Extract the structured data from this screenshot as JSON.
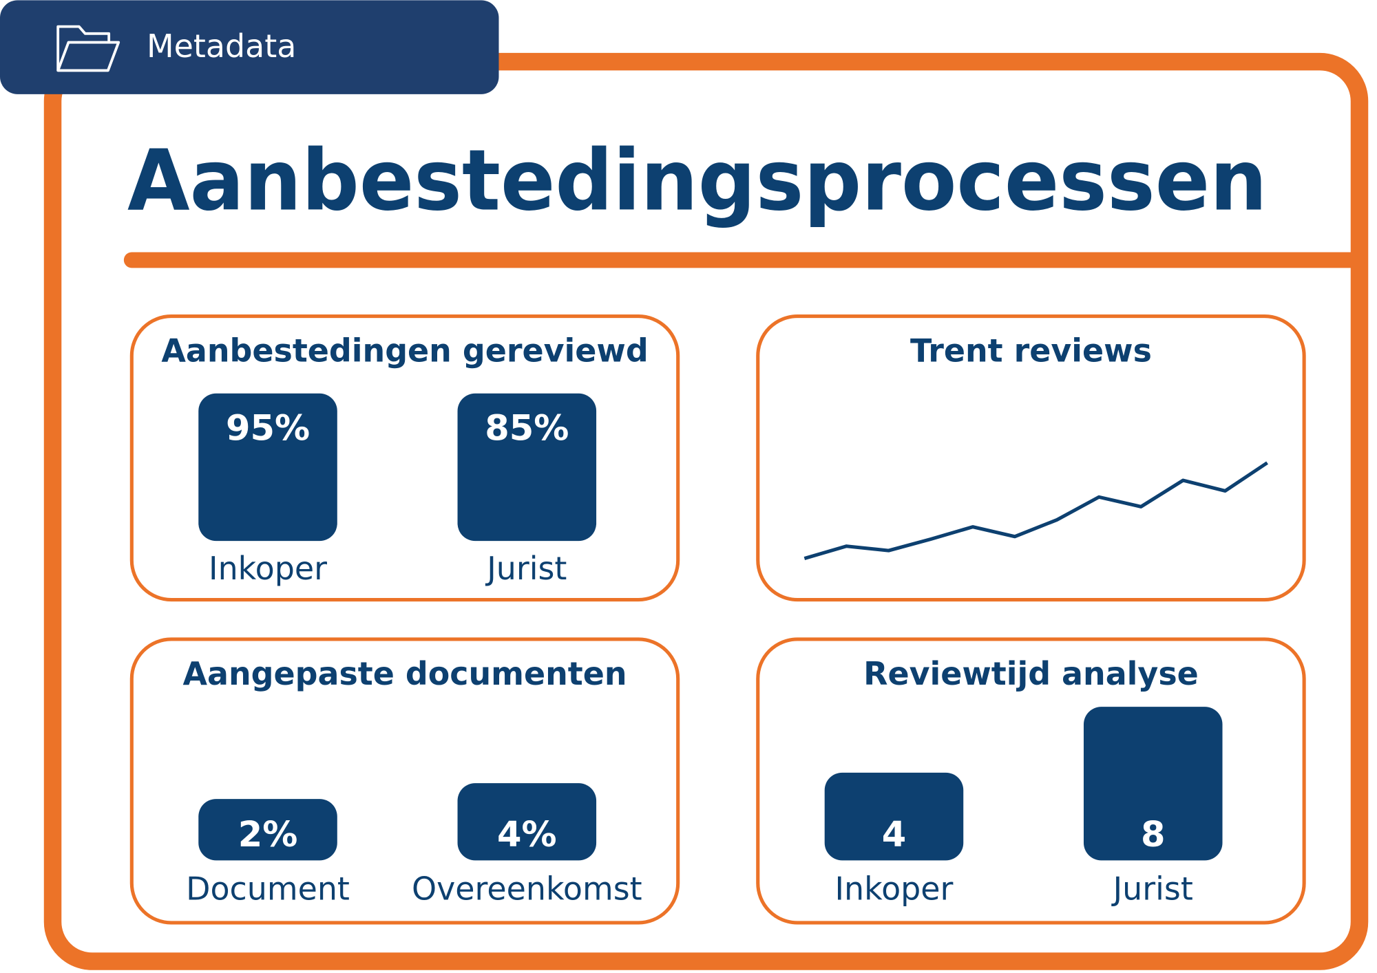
{
  "header": {
    "label": "Metadata"
  },
  "title": "Aanbestedingsprocessen",
  "panels": [
    {
      "title": "Aanbestedingen gereviewd",
      "type": "bar",
      "categories": [
        "Inkoper",
        "Jurist"
      ],
      "values": [
        95,
        85
      ],
      "value_labels": [
        "95%",
        "85%"
      ],
      "color": "#0d4070"
    },
    {
      "title": "Trent reviews",
      "type": "line",
      "values": [
        14,
        28,
        23,
        36,
        50,
        39,
        58,
        84,
        73,
        103,
        91,
        123
      ],
      "color": "#0d4070"
    },
    {
      "title": "Aangepaste documenten",
      "type": "bar",
      "categories": [
        "Document",
        "Overeenkomst"
      ],
      "values": [
        2,
        4
      ],
      "value_labels": [
        "2%",
        "4%"
      ],
      "color": "#0d4070"
    },
    {
      "title": "Reviewtijd analyse",
      "type": "bar",
      "categories": [
        "Inkoper",
        "Jurist"
      ],
      "values": [
        4,
        8
      ],
      "color": "#0d4070"
    }
  ]
}
